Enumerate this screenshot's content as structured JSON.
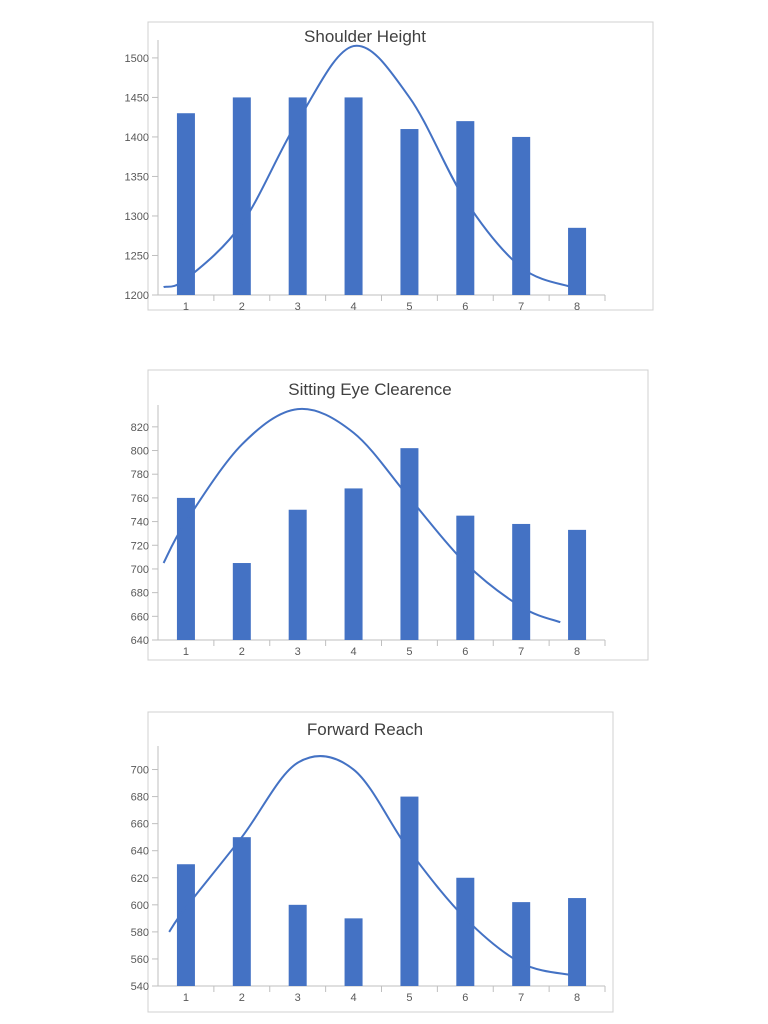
{
  "colors": {
    "bar": "#4472c4",
    "curve": "#4472c4"
  },
  "chart_data": [
    {
      "type": "bar",
      "title": "Shoulder Height",
      "categories": [
        "1",
        "2",
        "3",
        "4",
        "5",
        "6",
        "7",
        "8"
      ],
      "values": [
        1430,
        1450,
        1450,
        1450,
        1410,
        1420,
        1400,
        1285
      ],
      "ylim": [
        1200,
        1510
      ],
      "yticks": [
        "1200",
        "1250",
        "1300",
        "1350",
        "1400",
        "1450",
        "1500"
      ],
      "curve": {
        "type": "line",
        "x": [
          0.6,
          1,
          2,
          3,
          4,
          5,
          6,
          7,
          7.9
        ],
        "values": [
          1210,
          1220,
          1290,
          1420,
          1515,
          1450,
          1320,
          1235,
          1210
        ]
      }
    },
    {
      "type": "bar",
      "title": "Sitting Eye Clearence",
      "categories": [
        "1",
        "2",
        "3",
        "4",
        "5",
        "6",
        "7",
        "8"
      ],
      "values": [
        760,
        705,
        750,
        768,
        802,
        745,
        738,
        733
      ],
      "ylim": [
        640,
        830
      ],
      "yticks": [
        "640",
        "660",
        "680",
        "700",
        "720",
        "740",
        "760",
        "780",
        "800",
        "820"
      ],
      "curve": {
        "type": "line",
        "x": [
          0.6,
          1,
          2,
          3,
          4,
          5,
          6,
          7,
          7.7
        ],
        "values": [
          705,
          740,
          805,
          835,
          815,
          760,
          705,
          668,
          655
        ]
      }
    },
    {
      "type": "bar",
      "title": "Forward Reach",
      "categories": [
        "1",
        "2",
        "3",
        "4",
        "5",
        "6",
        "7",
        "8"
      ],
      "values": [
        630,
        650,
        600,
        590,
        680,
        620,
        602,
        605
      ],
      "ylim": [
        540,
        710
      ],
      "yticks": [
        "540",
        "560",
        "580",
        "600",
        "620",
        "640",
        "660",
        "680",
        "700"
      ],
      "curve": {
        "type": "line",
        "x": [
          0.7,
          1,
          2,
          3,
          4,
          5,
          6,
          7,
          7.9
        ],
        "values": [
          580,
          598,
          650,
          705,
          700,
          640,
          590,
          557,
          548
        ]
      }
    }
  ]
}
